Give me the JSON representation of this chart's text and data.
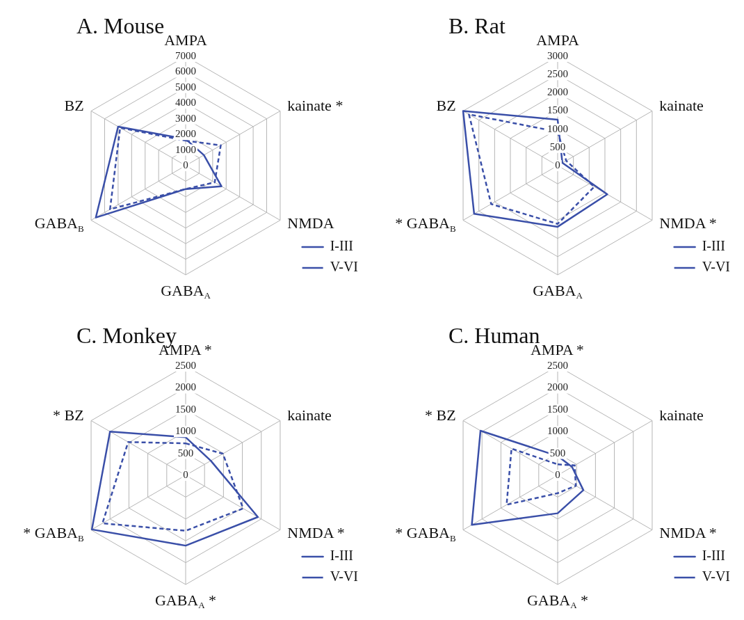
{
  "chart_data": [
    {
      "type": "radar",
      "title": "A. Mouse",
      "categories": [
        "AMPA",
        "kainate *",
        "NMDA",
        "GABA$_{A}$",
        "GABA$_{B}$",
        "BZ"
      ],
      "series": [
        {
          "name": "I-III",
          "color": "#3a4fa8",
          "line_style": "solid",
          "values": [
            1700,
            1350,
            2650,
            1500,
            6650,
            5000
          ]
        },
        {
          "name": "V-VI",
          "color": "#3a4fa8",
          "line_style": "dashed",
          "values": [
            1600,
            2600,
            2150,
            1500,
            5600,
            4850
          ]
        }
      ],
      "ylim": [
        0,
        7000
      ],
      "yticks": [
        0,
        1000,
        2000,
        3000,
        4000,
        5000,
        6000,
        7000
      ],
      "grid": true,
      "legend": "bottom right",
      "marker": "none"
    },
    {
      "type": "radar",
      "title": "B. Rat",
      "categories": [
        "AMPA",
        "kainate",
        "NMDA *",
        "GABA$_{A}$",
        "* GABA$_{B}$",
        "BZ"
      ],
      "series": [
        {
          "name": "I-III",
          "color": "#3a4fa8",
          "line_style": "solid",
          "values": [
            1260,
            150,
            1575,
            1680,
            2650,
            3000
          ]
        },
        {
          "name": "V-VI",
          "color": "#3a4fa8",
          "line_style": "dashed",
          "values": [
            930,
            270,
            1160,
            1600,
            2110,
            2815
          ]
        }
      ],
      "ylim": [
        0,
        3000
      ],
      "yticks": [
        0,
        500,
        1000,
        1500,
        2000,
        2500,
        3000
      ],
      "grid": true,
      "legend": "bottom right",
      "marker": "none"
    },
    {
      "type": "radar",
      "title": "C. Monkey",
      "categories": [
        "AMPA *",
        "kainate",
        "NMDA *",
        "GABA$_{A}$ *",
        "* GABA$_{B}$",
        "* BZ"
      ],
      "series": [
        {
          "name": "I-III",
          "color": "#3a4fa8",
          "line_style": "solid",
          "values": [
            870,
            665,
            1910,
            1610,
            2480,
            2000
          ]
        },
        {
          "name": "V-VI",
          "color": "#3a4fa8",
          "line_style": "dashed",
          "values": [
            730,
            985,
            1520,
            1270,
            2200,
            1520
          ]
        }
      ],
      "ylim": [
        0,
        2500
      ],
      "yticks": [
        0,
        500,
        1000,
        1500,
        2000,
        2500
      ],
      "grid": true,
      "legend": "bottom right",
      "marker": "none"
    },
    {
      "type": "radar",
      "title": "C. Human",
      "categories": [
        "AMPA *",
        "kainate",
        "NMDA *",
        "GABA$_{A}$ *",
        "* GABA$_{B}$",
        "* BZ"
      ],
      "series": [
        {
          "name": "I-III",
          "color": "#3a4fa8",
          "line_style": "solid",
          "values": [
            440,
            380,
            680,
            870,
            2270,
            2040
          ]
        },
        {
          "name": "V-VI",
          "color": "#3a4fa8",
          "line_style": "dashed",
          "values": [
            250,
            450,
            480,
            410,
            1350,
            1220
          ]
        }
      ],
      "ylim": [
        0,
        2500
      ],
      "yticks": [
        0,
        500,
        1000,
        1500,
        2000,
        2500
      ],
      "grid": true,
      "legend": "bottom right",
      "marker": "none"
    }
  ]
}
